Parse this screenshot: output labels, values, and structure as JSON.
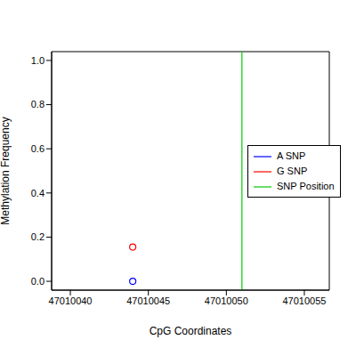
{
  "chart_data": {
    "type": "scatter",
    "x_label": "CpG Coordinates",
    "y_label": "Methylation Frequency",
    "xlim": [
      47010038.8,
      47010056.6
    ],
    "xticks": [
      47010040,
      47010045,
      47010050,
      47010055
    ],
    "ylim": [
      -0.04,
      1.04
    ],
    "yticks": [
      {
        "value": 0,
        "label": "0.0"
      },
      0.2,
      0.4,
      0.6,
      0.8,
      {
        "value": 1,
        "label": "1.0"
      }
    ],
    "legend": "right",
    "series": [
      {
        "name": "A SNP",
        "color": "#0000ff",
        "marker": "open circle",
        "x": [
          47010044
        ],
        "values": [
          0.0
        ]
      },
      {
        "name": "G SNP",
        "color": "#ff0000",
        "marker": "open circle",
        "x": [
          47010044
        ],
        "values": [
          0.155
        ]
      },
      {
        "name": "SNP Position",
        "color": "#00cc00",
        "type": "vline",
        "x": [
          47010051
        ]
      }
    ]
  }
}
